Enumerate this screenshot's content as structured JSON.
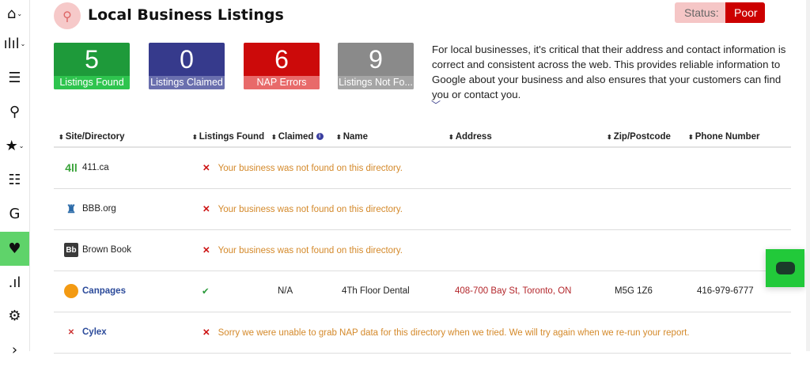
{
  "sidebar": {
    "items": [
      {
        "icon": "home-icon",
        "glyph": "⌂",
        "chevron": true
      },
      {
        "icon": "analytics-icon",
        "glyph": "ılıl",
        "chevron": true
      },
      {
        "icon": "route-icon",
        "glyph": "☰",
        "chevron": false
      },
      {
        "icon": "location-pin-icon",
        "glyph": "⚲",
        "chevron": false
      },
      {
        "icon": "star-review-icon",
        "glyph": "★",
        "chevron": true
      },
      {
        "icon": "list-add-icon",
        "glyph": "☷",
        "chevron": false
      },
      {
        "icon": "google-icon",
        "glyph": "G",
        "chevron": false
      },
      {
        "icon": "local-listings-icon",
        "glyph": "♥",
        "chevron": false,
        "active": true
      },
      {
        "icon": "google-ranking-icon",
        "glyph": ".ıl",
        "chevron": false
      },
      {
        "icon": "gear-icon",
        "glyph": "⚙",
        "chevron": false
      },
      {
        "icon": "chevron-right-icon",
        "glyph": "›",
        "chevron": false
      }
    ]
  },
  "header": {
    "title": "Local Business Listings",
    "icon": "map-pin-icon",
    "status_label": "Status:",
    "status_value": "Poor"
  },
  "cards": [
    {
      "value": "5",
      "label": "Listings Found",
      "color": "#1e9a3a",
      "label_bg": "#2ec44e"
    },
    {
      "value": "0",
      "label": "Listings Claimed",
      "color": "#363a8c",
      "label_bg": "#6a6fae"
    },
    {
      "value": "6",
      "label": "NAP Errors",
      "color": "#cc0a0a",
      "label_bg": "#e86a6a"
    },
    {
      "value": "9",
      "label": "Listings Not Fo...",
      "color": "#8a8a8a",
      "label_bg": "#a5a5a5"
    }
  ],
  "description": "For local businesses, it's critical that their address and contact information is correct and consistent across the web. This provides reliable information to Google about your business and also ensures that your customers can find you or contact you.",
  "table": {
    "headers": [
      "Site/Directory",
      "Listings Found",
      "Claimed",
      "Name",
      "Address",
      "Zip/Postcode",
      "Phone Number"
    ],
    "rows": [
      {
        "site": "411.ca",
        "logo": "411-logo",
        "logo_text": "4ll",
        "found": false,
        "message": "Your business was not found on this directory."
      },
      {
        "site": "BBB.org",
        "logo": "bbb-logo",
        "logo_text": "♜",
        "found": false,
        "message": "Your business was not found on this directory."
      },
      {
        "site": "Brown Book",
        "logo": "brownbook-logo",
        "logo_text": "Bb",
        "found": false,
        "message": "Your business was not found on this directory."
      },
      {
        "site": "Canpages",
        "logo": "canpages-logo",
        "logo_text": "",
        "found": true,
        "claimed": "N/A",
        "name": "4Th Floor Dental",
        "address": "408-700 Bay St, Toronto, ON",
        "zip": "M5G 1Z6",
        "phone": "416-979-6777"
      },
      {
        "site": "Cylex",
        "logo": "cylex-logo",
        "logo_text": "✕",
        "found": false,
        "message": "Sorry we were unable to grab NAP data for this directory when we tried. We will try again when we re-run your report."
      }
    ]
  }
}
